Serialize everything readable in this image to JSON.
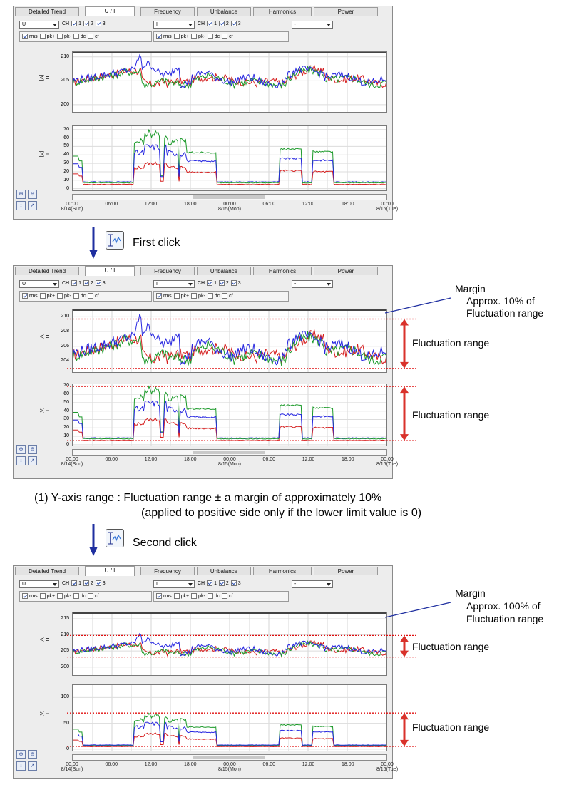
{
  "tabs": [
    "Detailed Trend",
    "U / I",
    "Frequency",
    "Unbalance",
    "Harmonics",
    "Power"
  ],
  "controls": {
    "left_select": "U",
    "right_select": "I",
    "third_select": "-",
    "ch_label": "CH",
    "channels": [
      "1",
      "2",
      "3"
    ],
    "options": [
      "rms",
      "pk+",
      "pk-",
      "dc",
      "cf"
    ]
  },
  "axis_labels": {
    "u": "U\n[V]",
    "i": "I\n[A]"
  },
  "x_axis": {
    "ticks": [
      "00:00",
      "06:00",
      "12:00",
      "18:00",
      "00:00",
      "06:00",
      "12:00",
      "18:00",
      "00:00"
    ],
    "dates": [
      "8/14(Sun)",
      "8/15(Mon)",
      "8/16(Tue)"
    ]
  },
  "colors": {
    "ch1": "#d62020",
    "ch2": "#1c9a2a",
    "ch3": "#2626e0",
    "dotted": "#e01010",
    "arrow": "#d9322b",
    "pointer": "#1f2fa0"
  },
  "panels": [
    {
      "u_ticks": [
        "210",
        "205",
        "200"
      ],
      "u_range": [
        198.5,
        211
      ],
      "i_ticks": [
        "70",
        "60",
        "50",
        "40",
        "30",
        "20",
        "10",
        "0"
      ],
      "i_range": [
        -2,
        74
      ]
    },
    {
      "u_ticks": [
        "210",
        "208",
        "206",
        "204"
      ],
      "u_range": [
        202.5,
        211
      ],
      "i_ticks": [
        "70",
        "60",
        "50",
        "40",
        "30",
        "20",
        "10",
        "0"
      ],
      "i_range": [
        -1,
        72
      ]
    },
    {
      "u_ticks": [
        "215",
        "210",
        "205",
        "200"
      ],
      "u_range": [
        197.5,
        217
      ],
      "i_ticks": [
        "100",
        "50",
        "0"
      ],
      "i_range": [
        -3,
        124
      ]
    }
  ],
  "annotations": {
    "first_click": "First click",
    "second_click": "Second click",
    "margin": "Margin",
    "margin_10": "Approx. 10% of",
    "margin_100": "Approx. 100% of",
    "fluct_range": "Fluctuation range",
    "fluct_range_line": "Fluctuation range",
    "note_line1": "(1)  Y-axis range : Fluctuation range ± a margin of approximately 10%",
    "note_line2": "(applied to positive side only if the lower limit value is 0)"
  }
}
